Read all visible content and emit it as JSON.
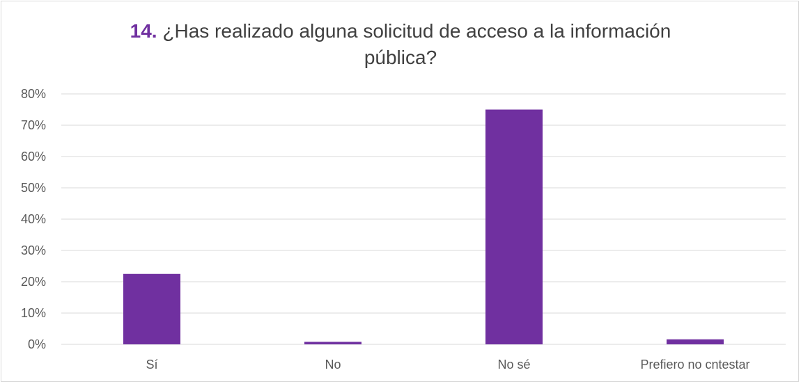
{
  "chart_data": {
    "type": "bar",
    "title_number": "14.",
    "title_line1": "¿Has realizado alguna solicitud de acceso a la información",
    "title_line2": "pública?",
    "categories": [
      "Sí",
      "No",
      "No sé",
      "Prefiero no cntestar"
    ],
    "values": [
      22.5,
      0.8,
      75,
      1.6
    ],
    "ylim": [
      0,
      80
    ],
    "yticks": [
      0,
      10,
      20,
      30,
      40,
      50,
      60,
      70,
      80
    ],
    "ytick_labels": [
      "0%",
      "10%",
      "20%",
      "30%",
      "40%",
      "50%",
      "60%",
      "70%",
      "80%"
    ],
    "grid": true,
    "bar_color": "#7030a0",
    "grid_color": "#d9d9d9"
  }
}
